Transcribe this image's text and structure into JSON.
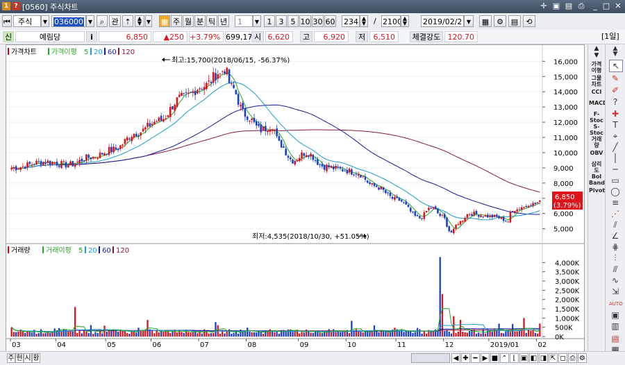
{
  "window": {
    "title": "[0560] 주식차트"
  },
  "toolbar": {
    "market": "주식",
    "code": "036000",
    "btn_gwan": "관",
    "periods": [
      "주",
      "월",
      "분",
      "틱",
      "년"
    ],
    "interval_value": "1",
    "minute_buttons": [
      "1",
      "3",
      "5",
      "10",
      "30",
      "60"
    ],
    "display_count": "234",
    "total_count": "2100",
    "date": "2019/02/2"
  },
  "infobar": {
    "tag": "신",
    "name": "예림당",
    "info_button": "i",
    "price": "6,850",
    "change": "▲250",
    "change_pct": "+3.79%",
    "volume": "699,174",
    "open_label": "시",
    "open": "6,620",
    "high_label": "고",
    "high": "6,920",
    "low_label": "저",
    "low": "6,510",
    "strength_label": "체결강도",
    "strength": "120.70",
    "period_badge": "[1일]"
  },
  "price_chart": {
    "legend": [
      {
        "label": "가격차트",
        "color": "#cc0000"
      },
      {
        "label": "가격이평",
        "color": "#22aa22"
      },
      {
        "label": "5",
        "color": "#22aa22"
      },
      {
        "label": "20",
        "color": "#1a9ad6"
      },
      {
        "label": "60",
        "color": "#1a1aa0"
      },
      {
        "label": "120",
        "color": "#8b1a3a"
      }
    ],
    "high_annotation": "최고:15,700(2018/06/15, -56.37%)",
    "low_annotation": "최저:4,535(2018/10/30, +51.05%)",
    "last_price_label": "6,850",
    "last_pct_label": "(3.79%)",
    "y_ticks": [
      "16,000",
      "15,000",
      "14,000",
      "13,000",
      "12,000",
      "11,000",
      "10,000",
      "9,000",
      "8,000",
      "7,000",
      "6,000",
      "5,000"
    ]
  },
  "volume_chart": {
    "legend": [
      {
        "label": "거래량",
        "color": "#cc0000"
      },
      {
        "label": "거래이평",
        "color": "#22aa22"
      },
      {
        "label": "5",
        "color": "#22aa22"
      },
      {
        "label": "20",
        "color": "#1a9ad6"
      },
      {
        "label": "60",
        "color": "#1a1aa0"
      },
      {
        "label": "120",
        "color": "#8b1a3a"
      }
    ],
    "y_ticks": [
      "4,000K",
      "3,500K",
      "3,000K",
      "2,500K",
      "2,000K",
      "1,500K",
      "1,000K",
      "500K",
      "0K"
    ]
  },
  "x_axis": [
    "03",
    "04",
    "05",
    "06",
    "07",
    "08",
    "09",
    "10",
    "11",
    "12",
    "2019/01",
    "02"
  ],
  "right_panel": [
    "가격이평",
    "그물차트",
    "CCI",
    "MACD",
    "F-Stoc",
    "S-Stoc",
    "거래량",
    "OBV",
    "삼리도",
    "Bol Band",
    "Pivot"
  ],
  "bottom_tabs": [
    "주",
    "현",
    "시",
    "황"
  ],
  "chart_data": {
    "type": "candlestick",
    "price_ylim": [
      4300,
      16700
    ],
    "price_high": {
      "value": 15700,
      "date": "2018/06/15"
    },
    "price_low": {
      "value": 4535,
      "date": "2018/10/30"
    },
    "last_close": 6850,
    "volume_ylim": [
      0,
      4500
    ]
  }
}
